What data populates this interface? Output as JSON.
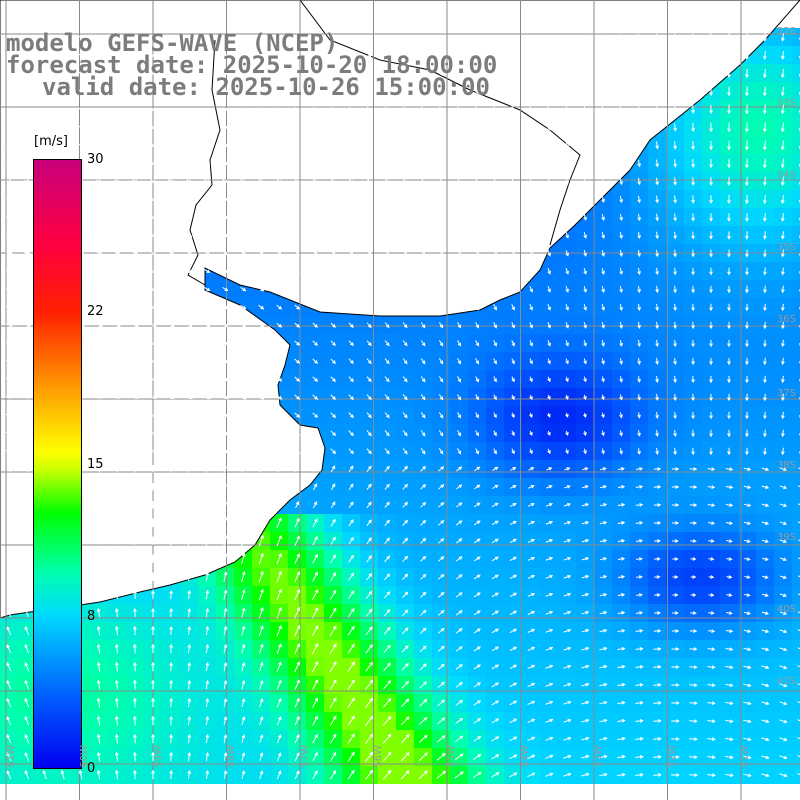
{
  "header": {
    "line1": "modelo GEFS-WAVE (NCEP)",
    "line2": "forecast date: 2025-10-20 18:00:00",
    "line3": "valid date: 2025-10-26 15:00:00"
  },
  "colorbar": {
    "unit": "[m/s]",
    "ticks": [
      "30",
      "22",
      "15",
      "8",
      "0"
    ],
    "tick_values": [
      30,
      22,
      15,
      8,
      0
    ],
    "min": 0,
    "max": 30
  },
  "map": {
    "latitude_labels": [
      "32S",
      "33S",
      "34S",
      "35S",
      "36S",
      "37S",
      "38S",
      "39S",
      "40S",
      "41S"
    ],
    "longitude_labels": [
      "61W",
      "60W",
      "59W",
      "58W",
      "57W",
      "56W",
      "55W",
      "54W",
      "53W",
      "52W",
      "51W"
    ],
    "colors": {
      "land": "#ffffff",
      "coast": "#000000",
      "grid": "#8a8a8a",
      "arrows": "#ffffff"
    }
  }
}
